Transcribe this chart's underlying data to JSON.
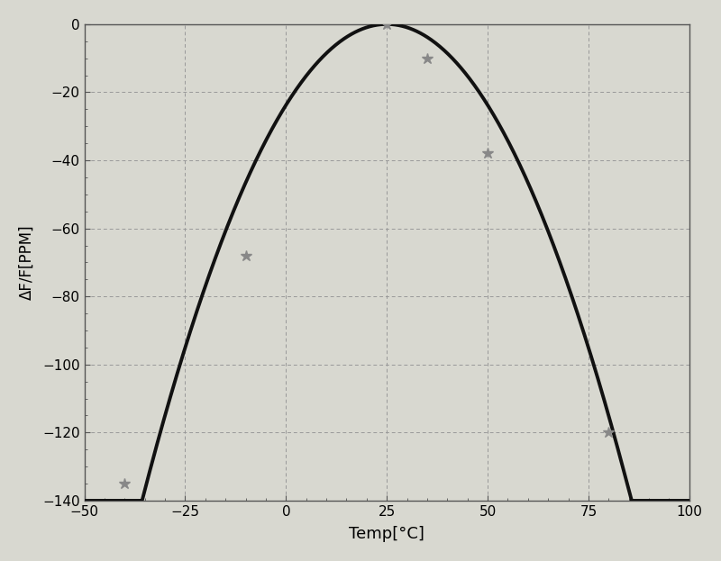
{
  "title": "",
  "xlabel": "Temp[°C]",
  "ylabel": "ΔF/F[PPM]",
  "xlim": [
    -50,
    100
  ],
  "ylim": [
    -140,
    0
  ],
  "xticks": [
    -50,
    -25,
    0,
    25,
    50,
    75,
    100
  ],
  "yticks": [
    0,
    -20,
    -40,
    -60,
    -80,
    -100,
    -120,
    -140
  ],
  "curve_peak_x": 25,
  "curve_coeff": -0.038,
  "data_points_x": [
    -40,
    -10,
    25,
    35,
    50,
    80
  ],
  "data_points_y": [
    -135,
    -68,
    0,
    -10,
    -38,
    -120
  ],
  "line_color": "#111111",
  "marker_color": "#888888",
  "background_color": "#d8d8d0",
  "plot_bg_color": "#d8d8d0",
  "grid_color": "#999999",
  "border_color": "#888888",
  "xlabel_fontsize": 13,
  "ylabel_fontsize": 12,
  "tick_fontsize": 11,
  "linewidth": 2.8,
  "markersize": 9
}
